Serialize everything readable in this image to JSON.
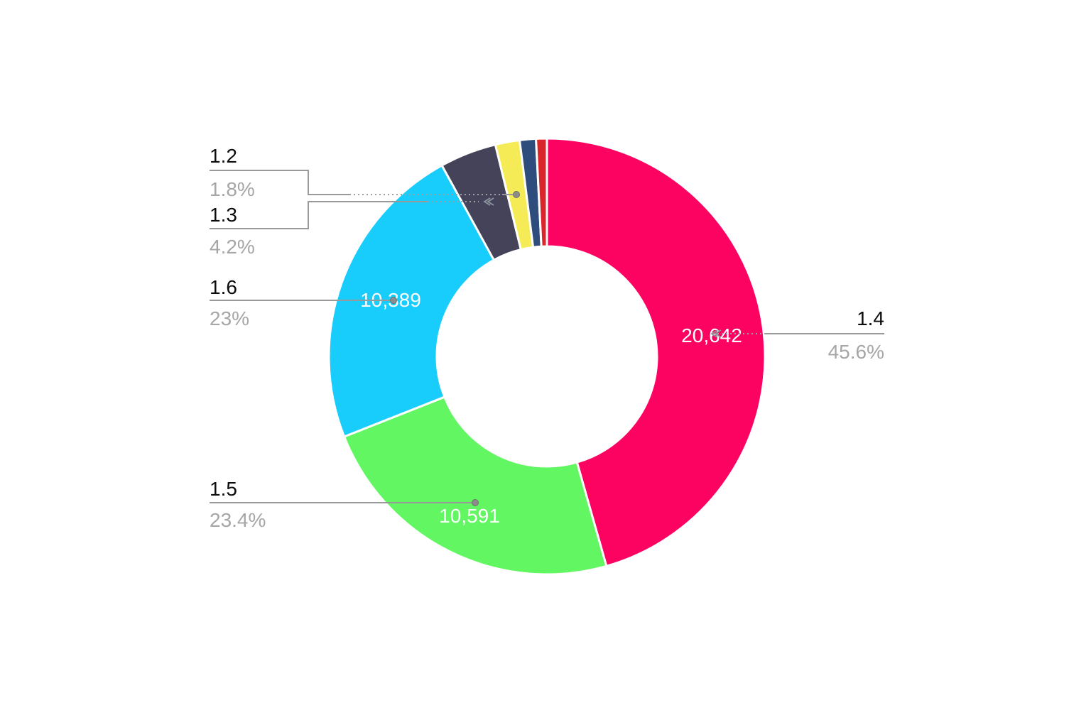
{
  "chart_data": {
    "type": "pie",
    "variant": "donut",
    "title": "",
    "legend": "none",
    "direction": "clockwise",
    "start_angle": "12-oclock",
    "inner_radius_ratio": 0.5,
    "slices": [
      {
        "label": "1.4",
        "value": 20642,
        "value_label": "20,642",
        "percent": 45.6,
        "percent_label": "45.6%",
        "color": "#FC0261"
      },
      {
        "label": "1.5",
        "value": 10591,
        "value_label": "10,591",
        "percent": 23.4,
        "percent_label": "23.4%",
        "color": "#62F762"
      },
      {
        "label": "1.6",
        "value": 10389,
        "value_label": "10,389",
        "percent": 23.0,
        "percent_label": "23%",
        "color": "#18CDFB"
      },
      {
        "label": "1.3",
        "percent": 4.2,
        "percent_label": "4.2%",
        "color": "#444359"
      },
      {
        "label": "1.2",
        "percent": 1.8,
        "percent_label": "1.8%",
        "color": "#F4EB56"
      },
      {
        "label": "",
        "percent": 1.2,
        "percent_label": "",
        "color": "#2E4D7D"
      },
      {
        "label": "",
        "percent": 0.8,
        "percent_label": "",
        "color": "#D8262A"
      }
    ],
    "annotation_colors": {
      "label_text": "#0c0c0c",
      "percent_text": "#a6a6a6",
      "leader_line": "#999999",
      "background": "#ffffff"
    }
  }
}
